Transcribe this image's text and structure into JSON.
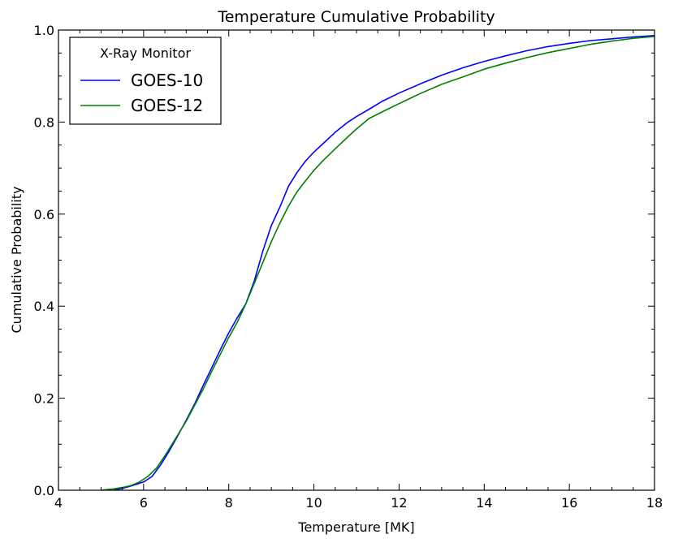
{
  "chart_data": {
    "type": "line",
    "title": "Temperature Cumulative Probability",
    "xlabel": "Temperature [MK]",
    "ylabel": "Cumulative Probability",
    "xlim": [
      4,
      18
    ],
    "ylim": [
      0.0,
      1.0
    ],
    "xticks": [
      4,
      6,
      8,
      10,
      12,
      14,
      16,
      18
    ],
    "yticks": [
      0.0,
      0.2,
      0.4,
      0.6,
      0.8,
      1.0
    ],
    "xtick_labels": [
      "4",
      "6",
      "8",
      "10",
      "12",
      "14",
      "16",
      "18"
    ],
    "ytick_labels": [
      "0.0",
      "0.2",
      "0.4",
      "0.6",
      "0.8",
      "1.0"
    ],
    "grid": false,
    "legend": {
      "title": "X-Ray Monitor",
      "placement": "top-left"
    },
    "series": [
      {
        "name": "GOES-10",
        "color": "#0000ff",
        "x": [
          5.3,
          5.5,
          5.7,
          6.0,
          6.2,
          6.4,
          6.6,
          6.8,
          7.0,
          7.2,
          7.4,
          7.6,
          7.8,
          8.0,
          8.2,
          8.4,
          8.6,
          8.8,
          9.0,
          9.2,
          9.4,
          9.6,
          9.8,
          10.0,
          10.2,
          10.5,
          10.8,
          11.0,
          11.3,
          11.6,
          12.0,
          12.5,
          13.0,
          13.5,
          14.0,
          14.5,
          15.0,
          15.5,
          16.0,
          16.5,
          17.0,
          17.5,
          18.0
        ],
        "y": [
          0.0,
          0.004,
          0.009,
          0.018,
          0.03,
          0.055,
          0.085,
          0.118,
          0.152,
          0.188,
          0.228,
          0.266,
          0.305,
          0.342,
          0.375,
          0.405,
          0.455,
          0.52,
          0.575,
          0.615,
          0.66,
          0.69,
          0.715,
          0.735,
          0.752,
          0.778,
          0.8,
          0.812,
          0.828,
          0.845,
          0.863,
          0.883,
          0.902,
          0.918,
          0.932,
          0.944,
          0.955,
          0.964,
          0.971,
          0.977,
          0.981,
          0.985,
          0.988
        ]
      },
      {
        "name": "GOES-12",
        "color": "#008000",
        "x": [
          5.0,
          5.3,
          5.5,
          5.7,
          5.9,
          6.1,
          6.3,
          6.5,
          6.7,
          7.0,
          7.2,
          7.4,
          7.6,
          7.8,
          8.0,
          8.2,
          8.4,
          8.6,
          8.8,
          9.0,
          9.2,
          9.4,
          9.6,
          9.8,
          10.0,
          10.2,
          10.5,
          10.8,
          11.0,
          11.3,
          11.6,
          12.0,
          12.5,
          13.0,
          13.5,
          14.0,
          14.5,
          15.0,
          15.5,
          16.0,
          16.5,
          17.0,
          17.5,
          18.0
        ],
        "y": [
          0.0,
          0.003,
          0.006,
          0.01,
          0.018,
          0.03,
          0.048,
          0.075,
          0.105,
          0.15,
          0.185,
          0.22,
          0.258,
          0.295,
          0.332,
          0.365,
          0.405,
          0.45,
          0.495,
          0.54,
          0.58,
          0.617,
          0.648,
          0.672,
          0.695,
          0.715,
          0.742,
          0.768,
          0.785,
          0.808,
          0.822,
          0.84,
          0.862,
          0.882,
          0.898,
          0.915,
          0.928,
          0.94,
          0.951,
          0.96,
          0.969,
          0.976,
          0.982,
          0.986
        ]
      }
    ]
  }
}
